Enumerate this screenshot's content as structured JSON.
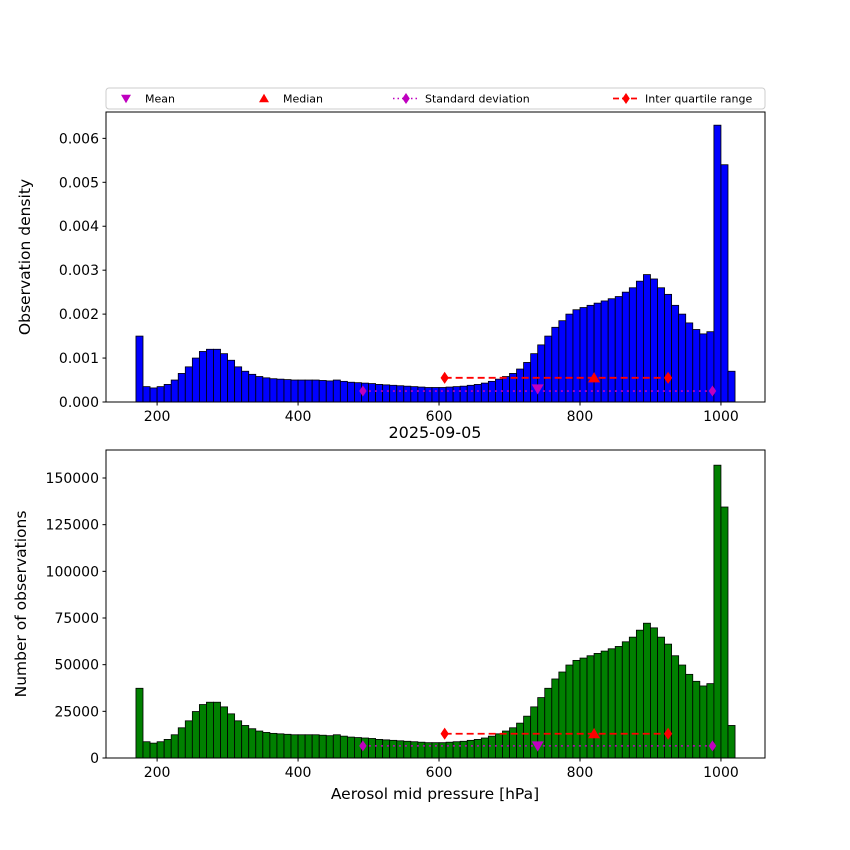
{
  "figure": {
    "title": "2025-09-05",
    "xlabel": "Aerosol mid pressure [hPa]",
    "background_color": "#ffffff"
  },
  "legend": {
    "items": [
      {
        "key": "mean",
        "label": "Mean",
        "marker": "triangle-down",
        "color": "#BF00BF",
        "line": "none"
      },
      {
        "key": "median",
        "label": "Median",
        "marker": "triangle-up",
        "color": "#FF0000",
        "line": "none"
      },
      {
        "key": "std",
        "label": "Standard deviation",
        "marker": "diamond",
        "color": "#BF00BF",
        "line": "dotted"
      },
      {
        "key": "iqr",
        "label": "Inter quartile range",
        "marker": "diamond",
        "color": "#FF0000",
        "line": "dashed"
      }
    ]
  },
  "marker_styles": {
    "mean": {
      "color": "#BF00BF",
      "shape": "triangle-down"
    },
    "median": {
      "color": "#FF0000",
      "shape": "triangle-up"
    },
    "std": {
      "color": "#BF00BF",
      "shape": "diamond",
      "dash": "2 4"
    },
    "iqr": {
      "color": "#FF0000",
      "shape": "diamond",
      "dash": "7 4"
    }
  },
  "chart_data": [
    {
      "type": "bar",
      "name": "observation-density",
      "ylabel": "Observation density",
      "bar_color": "#0000FF",
      "edge_color": "#000000",
      "bin_start": 170,
      "bin_width": 10,
      "values": [
        0.0015,
        0.00035,
        0.00032,
        0.00035,
        0.0004,
        0.0005,
        0.00065,
        0.0008,
        0.001,
        0.00115,
        0.0012,
        0.0012,
        0.0011,
        0.00095,
        0.0008,
        0.0007,
        0.00063,
        0.00058,
        0.00055,
        0.00053,
        0.00052,
        0.00051,
        0.0005,
        0.0005,
        0.0005,
        0.0005,
        0.00049,
        0.00048,
        0.0005,
        0.00047,
        0.00045,
        0.00044,
        0.00043,
        0.00042,
        0.0004,
        0.00039,
        0.00038,
        0.00037,
        0.00036,
        0.00035,
        0.00034,
        0.00033,
        0.00033,
        0.00033,
        0.00034,
        0.00035,
        0.00036,
        0.00038,
        0.0004,
        0.00043,
        0.00047,
        0.00052,
        0.00058,
        0.00065,
        0.00075,
        0.0009,
        0.0011,
        0.0013,
        0.0015,
        0.0017,
        0.00185,
        0.002,
        0.0021,
        0.00215,
        0.0022,
        0.00225,
        0.0023,
        0.00235,
        0.0024,
        0.0025,
        0.0026,
        0.00275,
        0.0029,
        0.0028,
        0.0026,
        0.00245,
        0.0022,
        0.002,
        0.0018,
        0.00165,
        0.00155,
        0.0016,
        0.0063,
        0.0054,
        0.0007
      ],
      "xlim": [
        127.5,
        1062.5
      ],
      "ylim": [
        0,
        0.0066
      ],
      "xticks": [
        200,
        400,
        600,
        800,
        1000
      ],
      "yticks": [
        0,
        0.001,
        0.002,
        0.003,
        0.004,
        0.005,
        0.006
      ],
      "ytick_labels": [
        "0.000",
        "0.001",
        "0.002",
        "0.003",
        "0.004",
        "0.005",
        "0.006"
      ],
      "markers": {
        "mean": {
          "x": 740,
          "y": 0.0003
        },
        "median": {
          "x": 820,
          "y": 0.00055
        },
        "std": {
          "x1": 492,
          "x2": 988,
          "y": 0.00025
        },
        "iqr": {
          "x1": 608,
          "x2": 925,
          "y": 0.00055
        }
      }
    },
    {
      "type": "bar",
      "name": "observation-counts",
      "ylabel": "Number of observations",
      "bar_color": "#008000",
      "edge_color": "#000000",
      "bin_start": 170,
      "bin_width": 10,
      "values": [
        37350,
        8715,
        7968,
        8715,
        9960,
        12450,
        16185,
        19920,
        24900,
        28635,
        29880,
        29880,
        27390,
        23655,
        19920,
        17430,
        15687,
        14442,
        13695,
        13197,
        12948,
        12699,
        12450,
        12450,
        12450,
        12450,
        12201,
        11952,
        12450,
        11703,
        11205,
        10956,
        10707,
        10458,
        9960,
        9711,
        9462,
        9213,
        8964,
        8715,
        8466,
        8217,
        8217,
        8217,
        8466,
        8715,
        8964,
        9462,
        9960,
        10707,
        11703,
        12948,
        14442,
        16185,
        18675,
        22410,
        27390,
        32370,
        37350,
        42330,
        46065,
        49800,
        52290,
        53535,
        54780,
        56025,
        57270,
        58515,
        59760,
        62250,
        64740,
        68475,
        72210,
        69720,
        64740,
        61005,
        54780,
        49800,
        44820,
        41085,
        38595,
        39840,
        156870,
        134460,
        17430
      ],
      "xlim": [
        127.5,
        1062.5
      ],
      "ylim": [
        0,
        165000
      ],
      "xticks": [
        200,
        400,
        600,
        800,
        1000
      ],
      "yticks": [
        0,
        25000,
        50000,
        75000,
        100000,
        125000,
        150000
      ],
      "ytick_labels": [
        "0",
        "25000",
        "50000",
        "75000",
        "100000",
        "125000",
        "150000"
      ],
      "markers": {
        "mean": {
          "x": 740,
          "y": 6500
        },
        "median": {
          "x": 820,
          "y": 13000
        },
        "std": {
          "x1": 492,
          "x2": 988,
          "y": 6500
        },
        "iqr": {
          "x1": 608,
          "x2": 925,
          "y": 13000
        }
      }
    }
  ]
}
